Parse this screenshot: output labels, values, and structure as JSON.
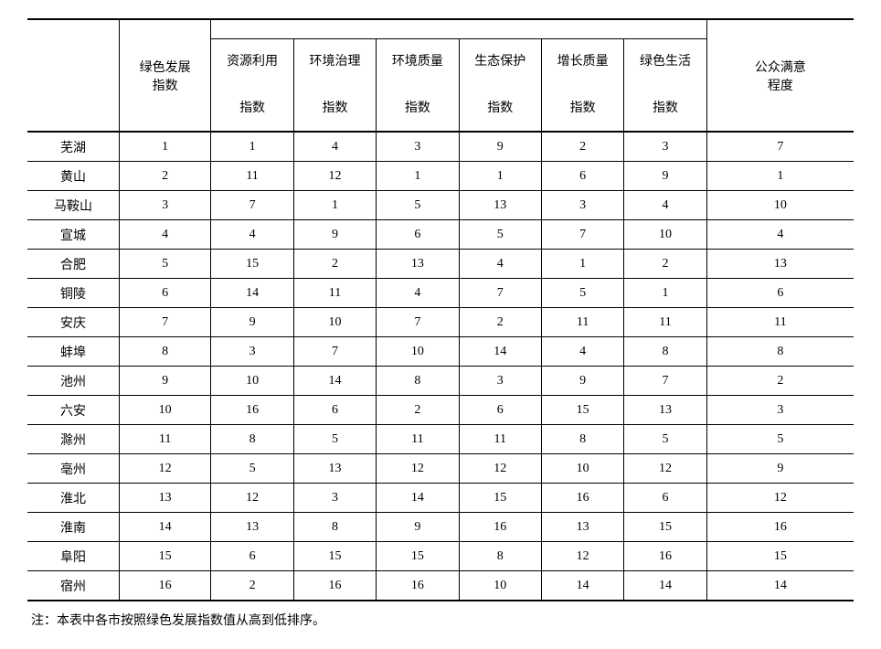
{
  "table": {
    "type": "table",
    "background_color": "#ffffff",
    "text_color": "#000000",
    "border_color": "#000000",
    "font_family": "SimSun",
    "header_fontsize": 14,
    "cell_fontsize": 14,
    "outer_border_width": 2,
    "inner_border_width": 1,
    "columns": {
      "city": "",
      "green_dev": "绿色发展\n指数",
      "resource": "资源利用\n\n指数",
      "env_gov": "环境治理\n\n指数",
      "env_qual": "环境质量\n\n指数",
      "eco_prot": "生态保护\n\n指数",
      "growth": "增长质量\n\n指数",
      "green_life": "绿色生活\n\n指数",
      "satisfaction": "公众满意\n程度"
    },
    "column_widths_pct": [
      10,
      10,
      9,
      9,
      9,
      9,
      9,
      9,
      16
    ],
    "rows": [
      {
        "city": "芜湖",
        "v": [
          "1",
          "1",
          "4",
          "3",
          "9",
          "2",
          "3",
          "7"
        ]
      },
      {
        "city": "黄山",
        "v": [
          "2",
          "11",
          "12",
          "1",
          "1",
          "6",
          "9",
          "1"
        ]
      },
      {
        "city": "马鞍山",
        "v": [
          "3",
          "7",
          "1",
          "5",
          "13",
          "3",
          "4",
          "10"
        ]
      },
      {
        "city": "宣城",
        "v": [
          "4",
          "4",
          "9",
          "6",
          "5",
          "7",
          "10",
          "4"
        ]
      },
      {
        "city": "合肥",
        "v": [
          "5",
          "15",
          "2",
          "13",
          "4",
          "1",
          "2",
          "13"
        ]
      },
      {
        "city": "铜陵",
        "v": [
          "6",
          "14",
          "11",
          "4",
          "7",
          "5",
          "1",
          "6"
        ]
      },
      {
        "city": "安庆",
        "v": [
          "7",
          "9",
          "10",
          "7",
          "2",
          "11",
          "11",
          "11"
        ]
      },
      {
        "city": "蚌埠",
        "v": [
          "8",
          "3",
          "7",
          "10",
          "14",
          "4",
          "8",
          "8"
        ]
      },
      {
        "city": "池州",
        "v": [
          "9",
          "10",
          "14",
          "8",
          "3",
          "9",
          "7",
          "2"
        ]
      },
      {
        "city": "六安",
        "v": [
          "10",
          "16",
          "6",
          "2",
          "6",
          "15",
          "13",
          "3"
        ]
      },
      {
        "city": "滁州",
        "v": [
          "11",
          "8",
          "5",
          "11",
          "11",
          "8",
          "5",
          "5"
        ]
      },
      {
        "city": "亳州",
        "v": [
          "12",
          "5",
          "13",
          "12",
          "12",
          "10",
          "12",
          "9"
        ]
      },
      {
        "city": "淮北",
        "v": [
          "13",
          "12",
          "3",
          "14",
          "15",
          "16",
          "6",
          "12"
        ]
      },
      {
        "city": "淮南",
        "v": [
          "14",
          "13",
          "8",
          "9",
          "16",
          "13",
          "15",
          "16"
        ]
      },
      {
        "city": "阜阳",
        "v": [
          "15",
          "6",
          "15",
          "15",
          "8",
          "12",
          "16",
          "15"
        ]
      },
      {
        "city": "宿州",
        "v": [
          "16",
          "2",
          "16",
          "16",
          "10",
          "14",
          "14",
          "14"
        ]
      }
    ]
  },
  "note": "注：本表中各市按照绿色发展指数值从高到低排序。"
}
